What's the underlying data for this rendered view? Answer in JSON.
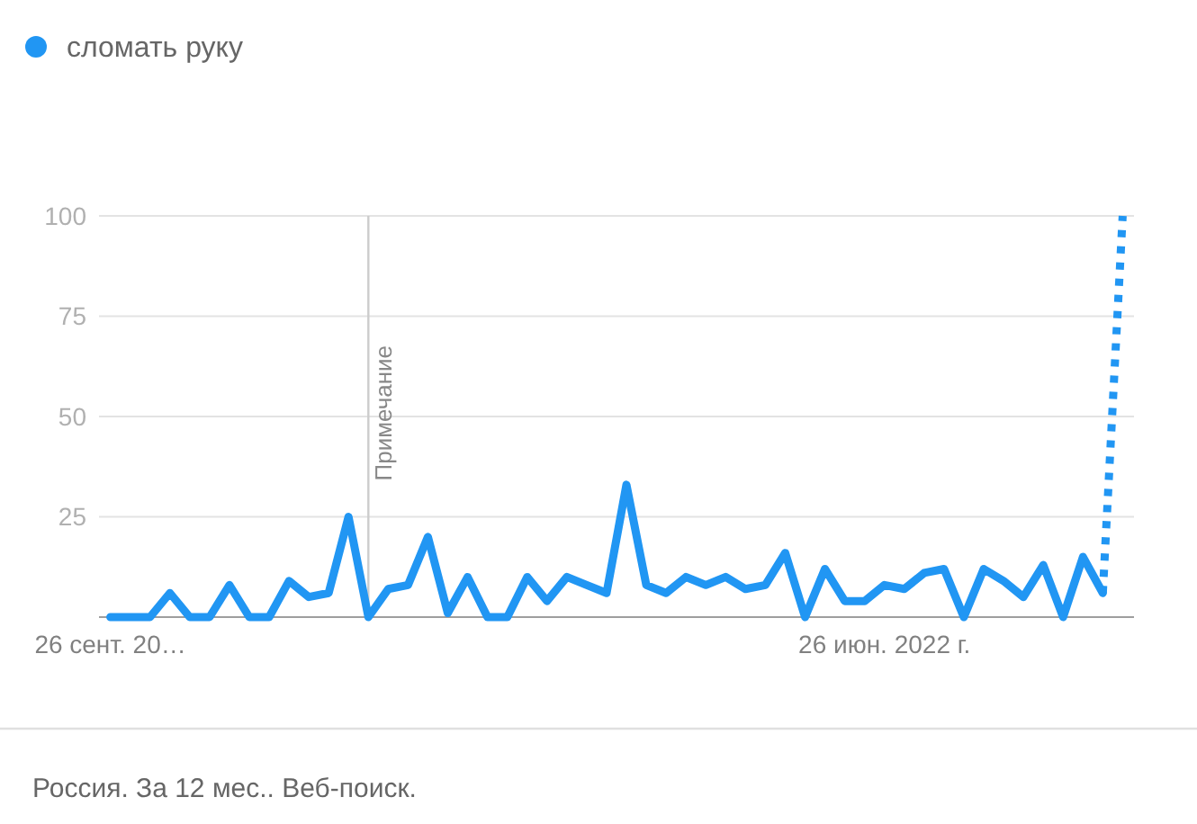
{
  "chart_data": {
    "type": "line",
    "x": [
      "2021-09-26",
      "2021-10-03",
      "2021-10-10",
      "2021-10-17",
      "2021-10-24",
      "2021-10-31",
      "2021-11-07",
      "2021-11-14",
      "2021-11-21",
      "2021-11-28",
      "2021-12-05",
      "2021-12-12",
      "2021-12-19",
      "2021-12-26",
      "2022-01-02",
      "2022-01-09",
      "2022-01-16",
      "2022-01-23",
      "2022-01-30",
      "2022-02-06",
      "2022-02-13",
      "2022-02-20",
      "2022-02-27",
      "2022-03-06",
      "2022-03-13",
      "2022-03-20",
      "2022-03-27",
      "2022-04-03",
      "2022-04-10",
      "2022-04-17",
      "2022-04-24",
      "2022-05-01",
      "2022-05-08",
      "2022-05-15",
      "2022-05-22",
      "2022-05-29",
      "2022-06-05",
      "2022-06-12",
      "2022-06-19",
      "2022-06-26",
      "2022-07-03",
      "2022-07-10",
      "2022-07-17",
      "2022-07-24",
      "2022-07-31",
      "2022-08-07",
      "2022-08-14",
      "2022-08-21",
      "2022-08-28",
      "2022-09-04",
      "2022-09-11"
    ],
    "series": [
      {
        "name": "сломать руку",
        "color": "#2196f3",
        "line_style": "solid",
        "values": [
          0,
          0,
          0,
          6,
          0,
          0,
          8,
          0,
          0,
          9,
          5,
          6,
          25,
          0,
          7,
          8,
          20,
          1,
          10,
          0,
          0,
          10,
          4,
          10,
          8,
          6,
          33,
          8,
          6,
          10,
          8,
          10,
          7,
          8,
          16,
          0,
          12,
          4,
          4,
          8,
          7,
          11,
          12,
          0,
          12,
          9,
          5,
          13,
          0,
          15,
          6
        ]
      },
      {
        "color": "#2196f3",
        "line_style": "dotted",
        "x": [
          "2022-09-11",
          "2022-09-18"
        ],
        "values": [
          6,
          100
        ]
      }
    ],
    "xlim": [
      "2021-09-22",
      "2022-09-22"
    ],
    "xticks": [
      {
        "value": "2021-09-26",
        "label": "26 сент. 20…"
      },
      {
        "value": "2022-06-26",
        "label": "26 июн. 2022 г."
      }
    ],
    "ylim": [
      0,
      100
    ],
    "yticks": [
      25,
      50,
      75,
      100
    ],
    "grid": "y",
    "legend": "top left",
    "ref_lines": [
      {
        "axis": "x",
        "value": "2021-12-26",
        "label": "Примечание",
        "color": "#cccccc"
      }
    ],
    "annotations": [
      "Россия. За 12 мес.. Веб-поиск."
    ]
  }
}
